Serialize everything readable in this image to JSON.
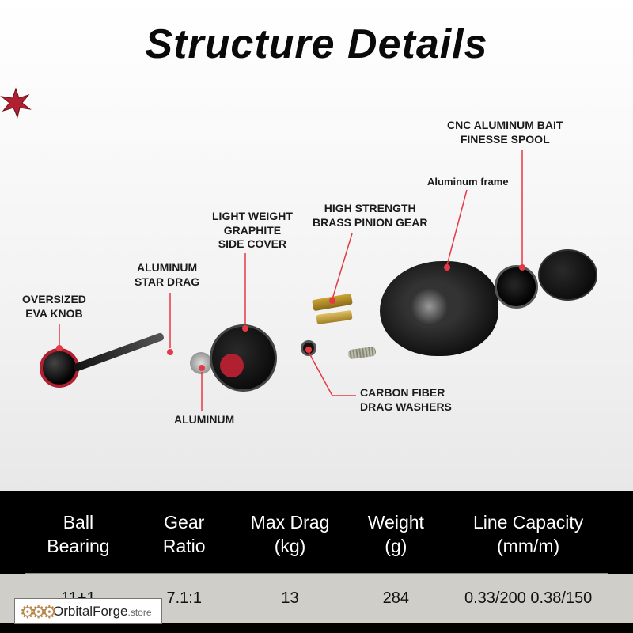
{
  "title": "Structure Details",
  "callouts": {
    "cnc_spool": "CNC ALUMINUM BAIT\nFINESSE SPOOL",
    "alu_frame": "Aluminum frame",
    "brass_gear": "HIGH STRENGTH\nBRASS PINION GEAR",
    "graphite_cover": "LIGHT WEIGHT\nGRAPHITE\nSIDE COVER",
    "star_drag": "ALUMINUM\nSTAR DRAG",
    "eva_knob": "OVERSIZED\nEVA KNOB",
    "carbon_washers": "CARBON FIBER\nDRAG WASHERS",
    "aluminum": "ALUMINUM"
  },
  "leader_color": "#e63946",
  "spec_table": {
    "headers": [
      "Ball\nBearing",
      "Gear\nRatio",
      "Max Drag\n(kg)",
      "Weight\n(g)",
      "Line Capacity\n(mm/m)"
    ],
    "row": [
      "11+1",
      "7.1:1",
      "13",
      "284",
      "0.33/200  0.38/150"
    ]
  },
  "watermark": {
    "brand": "OrbitalForge",
    "suffix": ".store"
  }
}
